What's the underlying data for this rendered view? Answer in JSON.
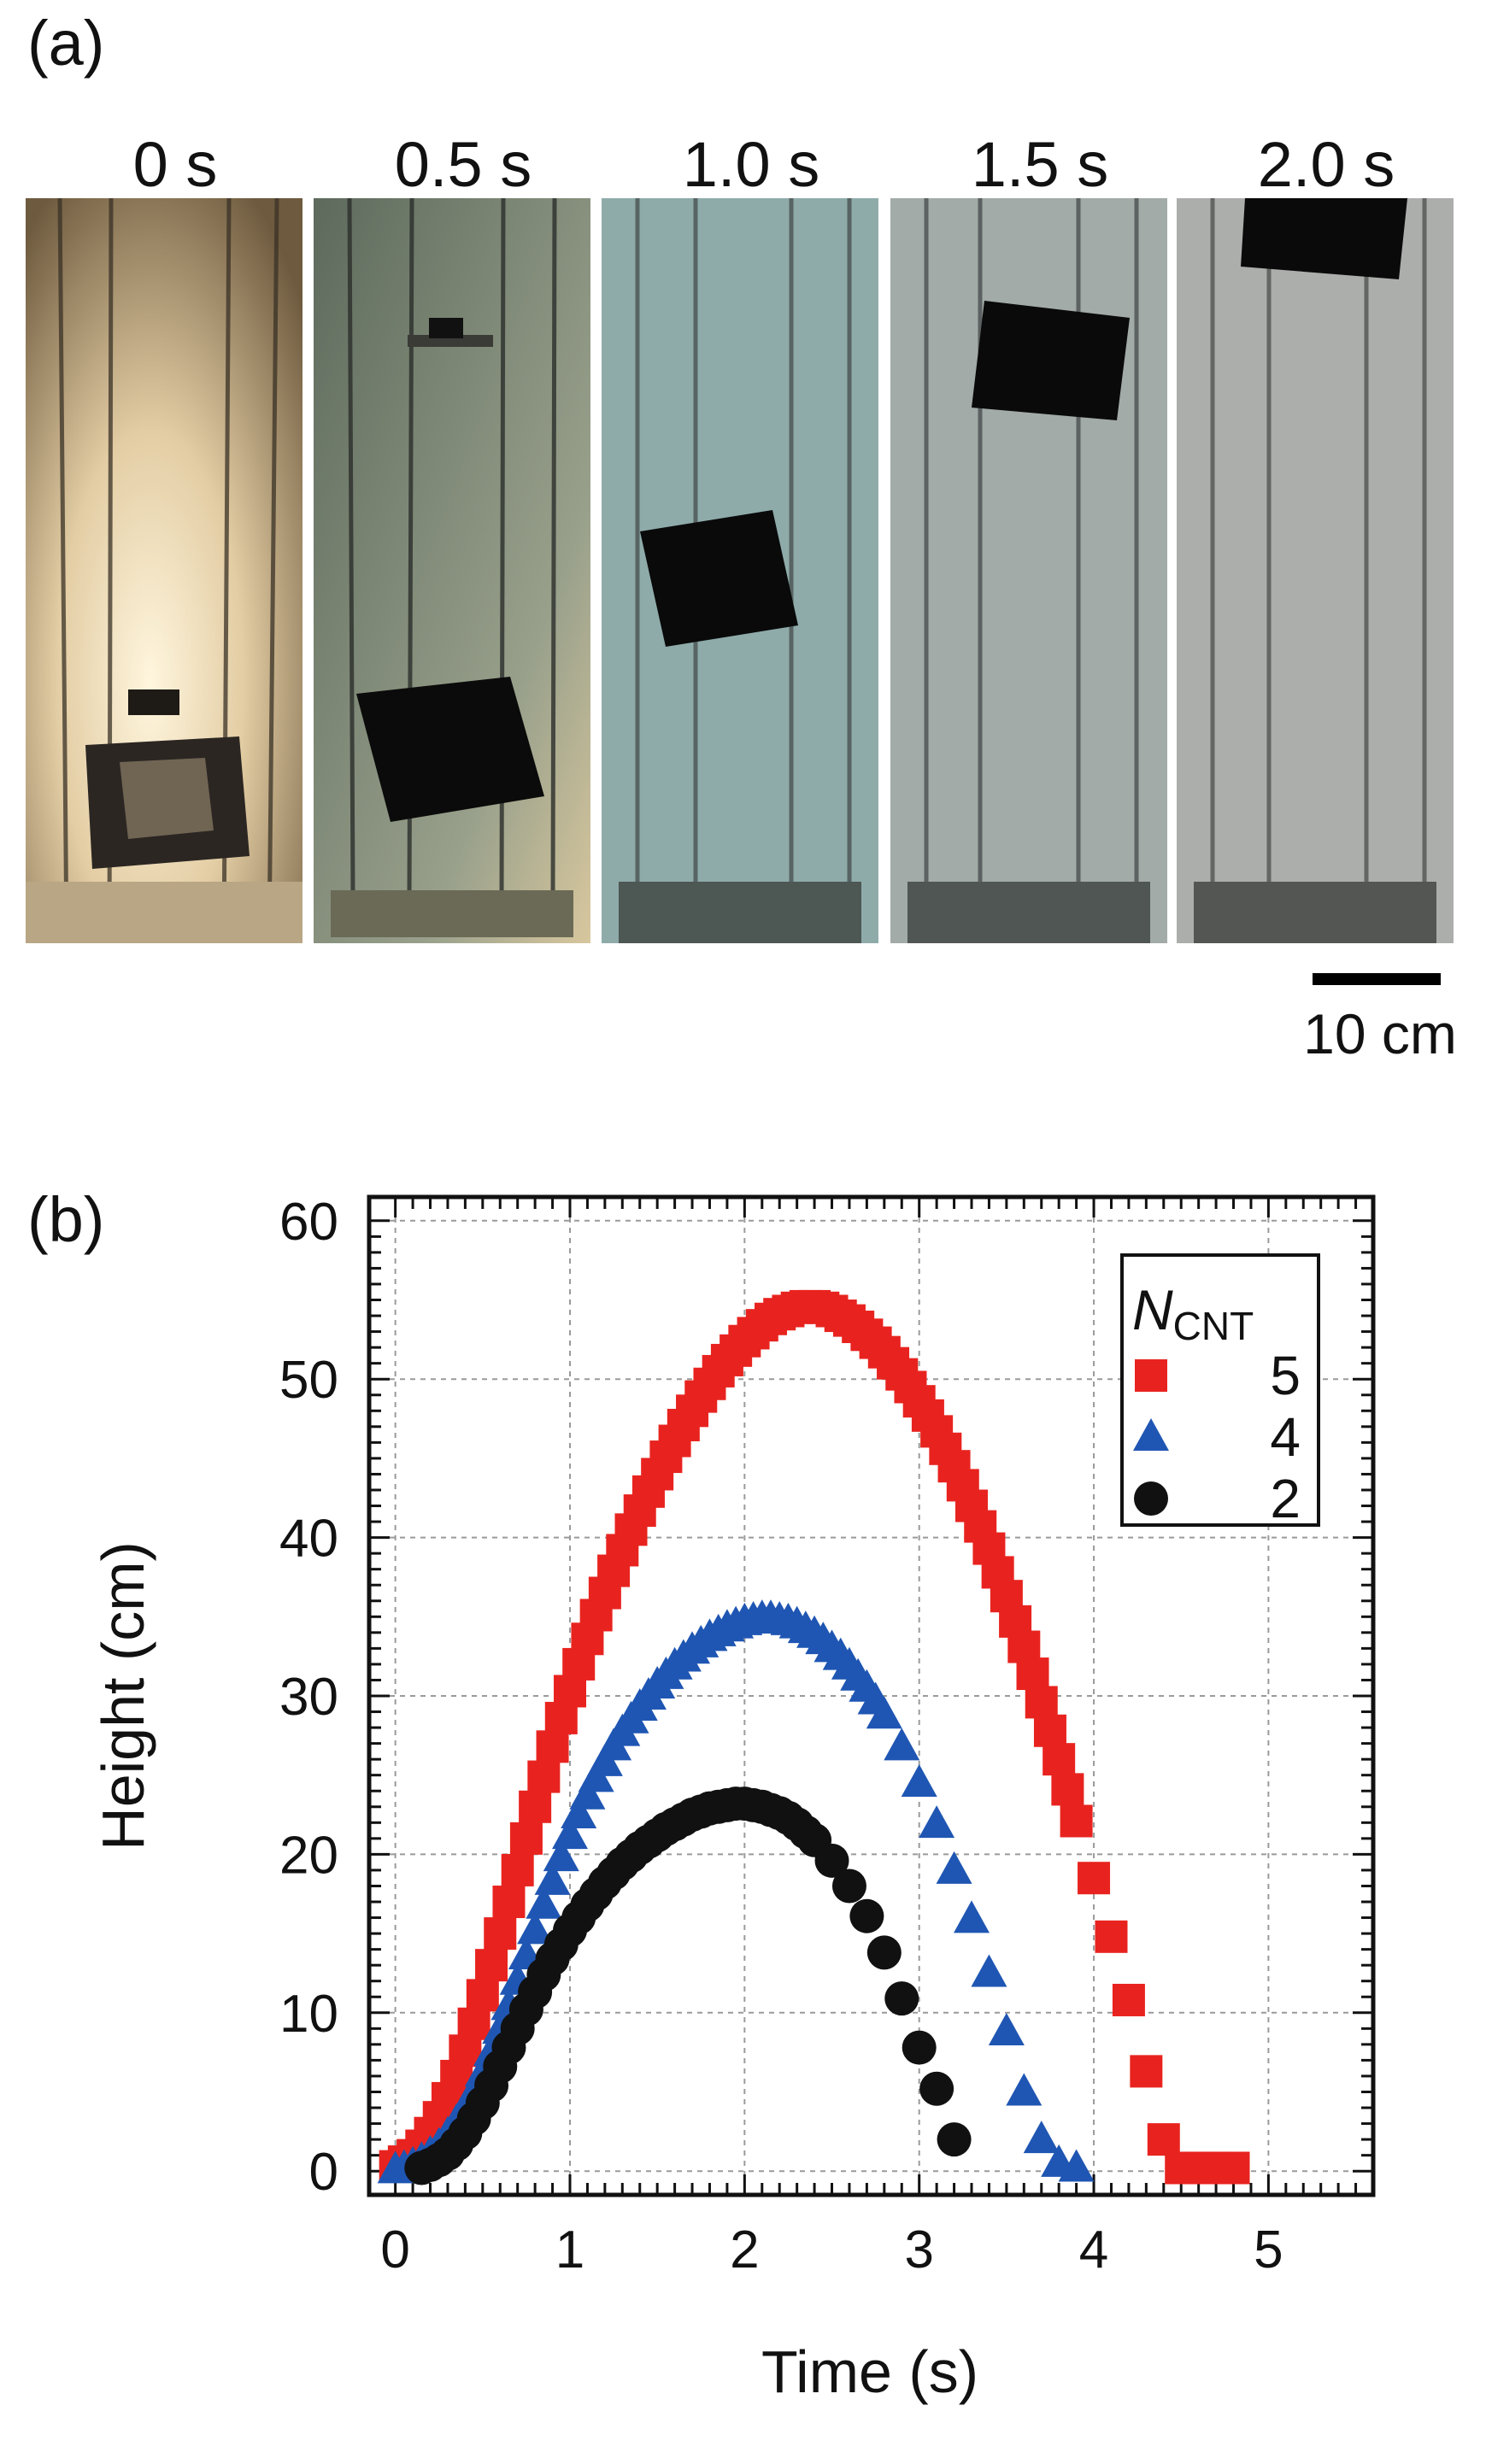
{
  "panel_a": {
    "letter": "(a)",
    "frames": [
      {
        "label": "0 s",
        "background": "#c9b089"
      },
      {
        "label": "0.5 s",
        "background": "#73806d"
      },
      {
        "label": "1.0 s",
        "background": "#8eabaa"
      },
      {
        "label": "1.5 s",
        "background": "#a2aba8"
      },
      {
        "label": "2.0 s",
        "background": "#acaeac"
      }
    ],
    "scale_bar": "10 cm"
  },
  "panel_b": {
    "letter": "(b)"
  },
  "chart_data": {
    "type": "scatter",
    "xlabel": "Time (s)",
    "ylabel": "Height (cm)",
    "xlim": [
      -0.15,
      5.6
    ],
    "ylim": [
      -1.5,
      61.5
    ],
    "xticks": [
      0,
      1,
      2,
      3,
      4,
      5
    ],
    "yticks": [
      0,
      10,
      20,
      30,
      40,
      50,
      60
    ],
    "grid": true,
    "legend": {
      "title": "N",
      "title_sub": "CNT",
      "position": "top-right"
    },
    "series": [
      {
        "name": "5",
        "marker": "square",
        "color": "#e8231f",
        "x": [
          0,
          0.05,
          0.1,
          0.15,
          0.2,
          0.25,
          0.3,
          0.35,
          0.4,
          0.45,
          0.5,
          0.55,
          0.6,
          0.65,
          0.7,
          0.75,
          0.8,
          0.85,
          0.9,
          0.95,
          1.0,
          1.05,
          1.1,
          1.15,
          1.2,
          1.25,
          1.3,
          1.35,
          1.4,
          1.45,
          1.5,
          1.55,
          1.6,
          1.65,
          1.7,
          1.75,
          1.8,
          1.85,
          1.9,
          1.95,
          2.0,
          2.05,
          2.1,
          2.15,
          2.2,
          2.25,
          2.3,
          2.35,
          2.4,
          2.45,
          2.5,
          2.55,
          2.6,
          2.65,
          2.7,
          2.75,
          2.8,
          2.85,
          2.9,
          2.95,
          3.0,
          3.05,
          3.1,
          3.15,
          3.2,
          3.25,
          3.3,
          3.35,
          3.4,
          3.45,
          3.5,
          3.55,
          3.6,
          3.65,
          3.7,
          3.75,
          3.8,
          3.85,
          3.9,
          4.0,
          4.1,
          4.2,
          4.3,
          4.4,
          4.5,
          4.6,
          4.7,
          4.8
        ],
        "y": [
          0.3,
          0.6,
          1.0,
          1.6,
          2.4,
          3.4,
          4.6,
          6.0,
          7.6,
          9.3,
          11.1,
          13.0,
          15.0,
          17.0,
          19.0,
          21.0,
          23.0,
          24.9,
          26.8,
          28.6,
          30.3,
          32.0,
          33.6,
          35.1,
          36.5,
          37.9,
          39.2,
          40.5,
          41.7,
          42.9,
          44.0,
          45.1,
          46.1,
          47.1,
          48.0,
          48.9,
          49.7,
          50.5,
          51.2,
          51.8,
          52.4,
          52.9,
          53.4,
          53.8,
          54.1,
          54.3,
          54.5,
          54.6,
          54.6,
          54.5,
          54.3,
          54.0,
          53.7,
          53.3,
          52.8,
          52.3,
          51.7,
          51.0,
          50.3,
          49.5,
          48.6,
          47.7,
          46.7,
          45.6,
          44.5,
          43.3,
          42.0,
          40.7,
          39.3,
          37.8,
          36.3,
          34.7,
          33.1,
          31.4,
          29.6,
          27.8,
          26.0,
          24.1,
          22.1,
          18.5,
          14.8,
          10.8,
          6.3,
          2.0,
          0.2,
          0.2,
          0.2,
          0.2
        ]
      },
      {
        "name": "4",
        "marker": "triangle",
        "color": "#1f56b3",
        "x": [
          0.0,
          0.05,
          0.1,
          0.15,
          0.2,
          0.25,
          0.3,
          0.35,
          0.4,
          0.45,
          0.5,
          0.55,
          0.6,
          0.65,
          0.7,
          0.75,
          0.8,
          0.85,
          0.9,
          0.95,
          1.0,
          1.05,
          1.1,
          1.15,
          1.2,
          1.25,
          1.3,
          1.35,
          1.4,
          1.45,
          1.5,
          1.55,
          1.6,
          1.65,
          1.7,
          1.75,
          1.8,
          1.85,
          1.9,
          1.95,
          2.0,
          2.05,
          2.1,
          2.15,
          2.2,
          2.25,
          2.3,
          2.35,
          2.4,
          2.45,
          2.5,
          2.55,
          2.6,
          2.65,
          2.7,
          2.75,
          2.8,
          2.9,
          3.0,
          3.1,
          3.2,
          3.3,
          3.4,
          3.5,
          3.6,
          3.7,
          3.8,
          3.9
        ],
        "y": [
          0.1,
          0.2,
          0.4,
          0.7,
          1.1,
          1.6,
          2.3,
          3.1,
          4.0,
          5.0,
          6.2,
          7.5,
          8.9,
          10.4,
          12.0,
          13.6,
          15.2,
          16.8,
          18.3,
          19.8,
          21.2,
          22.5,
          23.7,
          24.8,
          25.8,
          26.8,
          27.7,
          28.5,
          29.3,
          30.0,
          30.7,
          31.3,
          31.9,
          32.4,
          32.9,
          33.3,
          33.7,
          34.0,
          34.3,
          34.5,
          34.7,
          34.8,
          34.9,
          34.9,
          34.8,
          34.7,
          34.5,
          34.2,
          33.9,
          33.5,
          33.0,
          32.5,
          31.9,
          31.2,
          30.5,
          29.7,
          28.8,
          26.8,
          24.5,
          21.9,
          19.0,
          15.9,
          12.5,
          8.8,
          5.0,
          2.0,
          0.5,
          0.2
        ]
      },
      {
        "name": "2",
        "marker": "circle",
        "color": "#111111",
        "x": [
          0.15,
          0.2,
          0.25,
          0.3,
          0.35,
          0.4,
          0.45,
          0.5,
          0.55,
          0.6,
          0.65,
          0.7,
          0.75,
          0.8,
          0.85,
          0.9,
          0.95,
          1.0,
          1.05,
          1.1,
          1.15,
          1.2,
          1.25,
          1.3,
          1.35,
          1.4,
          1.45,
          1.5,
          1.55,
          1.6,
          1.65,
          1.7,
          1.75,
          1.8,
          1.85,
          1.9,
          1.95,
          2.0,
          2.05,
          2.1,
          2.15,
          2.2,
          2.25,
          2.3,
          2.35,
          2.4,
          2.5,
          2.6,
          2.7,
          2.8,
          2.9,
          3.0,
          3.1,
          3.2
        ],
        "y": [
          0.2,
          0.4,
          0.7,
          1.1,
          1.7,
          2.4,
          3.3,
          4.3,
          5.4,
          6.6,
          7.8,
          9.0,
          10.2,
          11.3,
          12.4,
          13.4,
          14.3,
          15.2,
          16.0,
          16.8,
          17.5,
          18.2,
          18.8,
          19.4,
          19.9,
          20.4,
          20.8,
          21.2,
          21.6,
          21.9,
          22.2,
          22.5,
          22.7,
          22.9,
          23.0,
          23.1,
          23.2,
          23.2,
          23.1,
          23.0,
          22.8,
          22.6,
          22.3,
          21.9,
          21.4,
          20.9,
          19.6,
          18.0,
          16.1,
          13.8,
          10.9,
          7.8,
          5.2,
          2.0
        ]
      }
    ]
  }
}
